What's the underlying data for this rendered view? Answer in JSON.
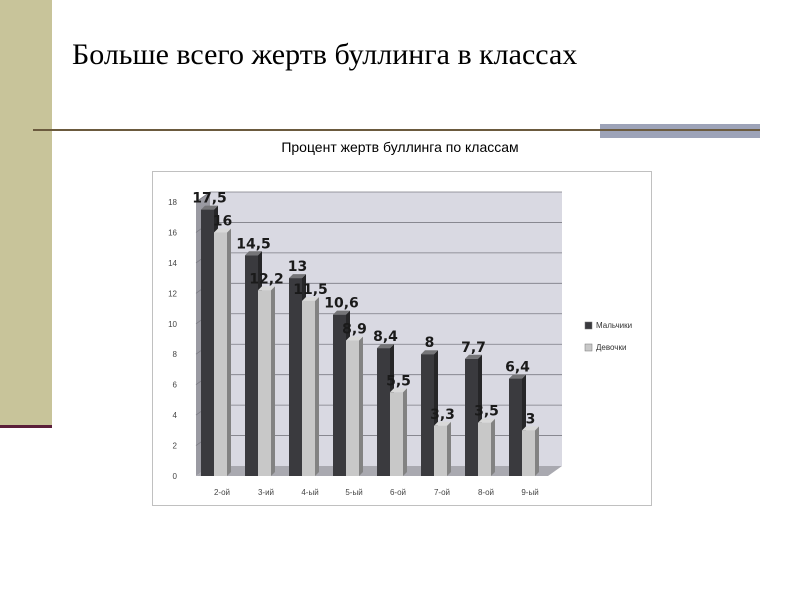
{
  "slide": {
    "title": "Больше всего жертв буллинга в классах",
    "subtitle": "Процент жертв буллинга по классам"
  },
  "colors": {
    "sidebar": "#c8c49a",
    "boys": "#3a3a3e",
    "girls": "#c8c8c8",
    "plot_back": "#d9d9e2"
  },
  "chart_data": {
    "type": "bar",
    "title": "Процент жертв буллинга по классам",
    "categories": [
      "2-ой",
      "3-ий",
      "4-ый",
      "5-ый",
      "6-ой",
      "7-ой",
      "8-ой",
      "9-ый"
    ],
    "series": [
      {
        "name": "Мальчики",
        "values": [
          17.5,
          14.5,
          13,
          10.6,
          8.4,
          8,
          7.7,
          6.4
        ],
        "labels": [
          "17,5",
          "14,5",
          "13",
          "10,6",
          "8,4",
          "8",
          "7,7",
          "6,4"
        ]
      },
      {
        "name": "Девочки",
        "values": [
          16,
          12.2,
          11.5,
          8.9,
          5.5,
          3.3,
          3.5,
          3
        ],
        "labels": [
          "16",
          "12,2",
          "11,5",
          "8,9",
          "5,5",
          "3,3",
          "3,5",
          "3"
        ]
      }
    ],
    "ylim": [
      0,
      18
    ],
    "yticks": [
      "0",
      "2",
      "4",
      "6",
      "8",
      "10",
      "12",
      "14",
      "16",
      "18"
    ],
    "xlabel": "",
    "ylabel": "",
    "grid": true,
    "legend": "right",
    "style": "3d-column"
  }
}
